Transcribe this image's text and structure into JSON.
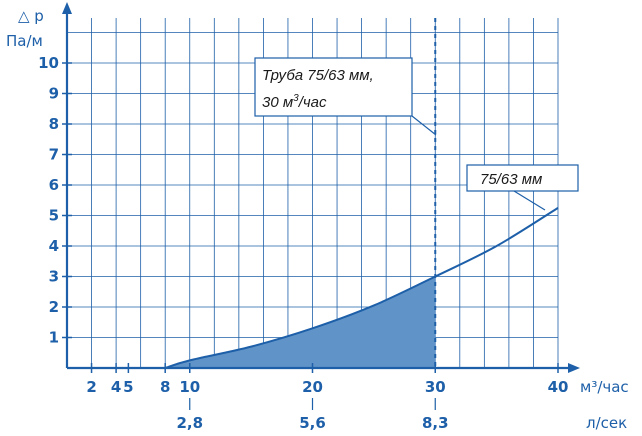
{
  "chart_data": {
    "type": "area",
    "x_unit_label": "м³/час",
    "x_unit_secondary_label": "л/сек",
    "y_title": "△ р",
    "y_unit_label": "Па/м",
    "xlim": [
      0,
      40
    ],
    "ylim": [
      0,
      11
    ],
    "x_ticks": [
      {
        "value": 2,
        "label": "2"
      },
      {
        "value": 4,
        "label": "4"
      },
      {
        "value": 5,
        "label": "5"
      },
      {
        "value": 8,
        "label": "8"
      },
      {
        "value": 10,
        "label": "10"
      },
      {
        "value": 20,
        "label": "20"
      },
      {
        "value": 30,
        "label": "30"
      },
      {
        "value": 40,
        "label": "40"
      }
    ],
    "x_secondary_ticks": [
      {
        "value": 10,
        "label": "2,8"
      },
      {
        "value": 20,
        "label": "5,6"
      },
      {
        "value": 30,
        "label": "8,3"
      }
    ],
    "y_ticks": [
      "1",
      "2",
      "3",
      "4",
      "5",
      "6",
      "7",
      "8",
      "9",
      "10"
    ],
    "grid": true,
    "series": [
      {
        "name": "75/63 мм",
        "x": [
          8,
          10,
          15,
          20,
          25,
          30,
          35,
          40
        ],
        "y": [
          0.0,
          0.25,
          0.7,
          1.3,
          2.05,
          3.0,
          4.0,
          5.25
        ]
      }
    ],
    "shaded_range": [
      8,
      30
    ],
    "reference_line_x": 30,
    "annotations": {
      "pipe_line1": "Труба 75/63 мм,",
      "pipe_line2_pre": "30 м",
      "pipe_line2_sup": "3",
      "pipe_line2_post": "/час",
      "curve_label": "75/63 мм"
    },
    "colors": {
      "axis": "#1d5fa8",
      "grid": "#1d5fa8",
      "fill": "#6094c8",
      "curve": "#1d5fa8"
    }
  }
}
